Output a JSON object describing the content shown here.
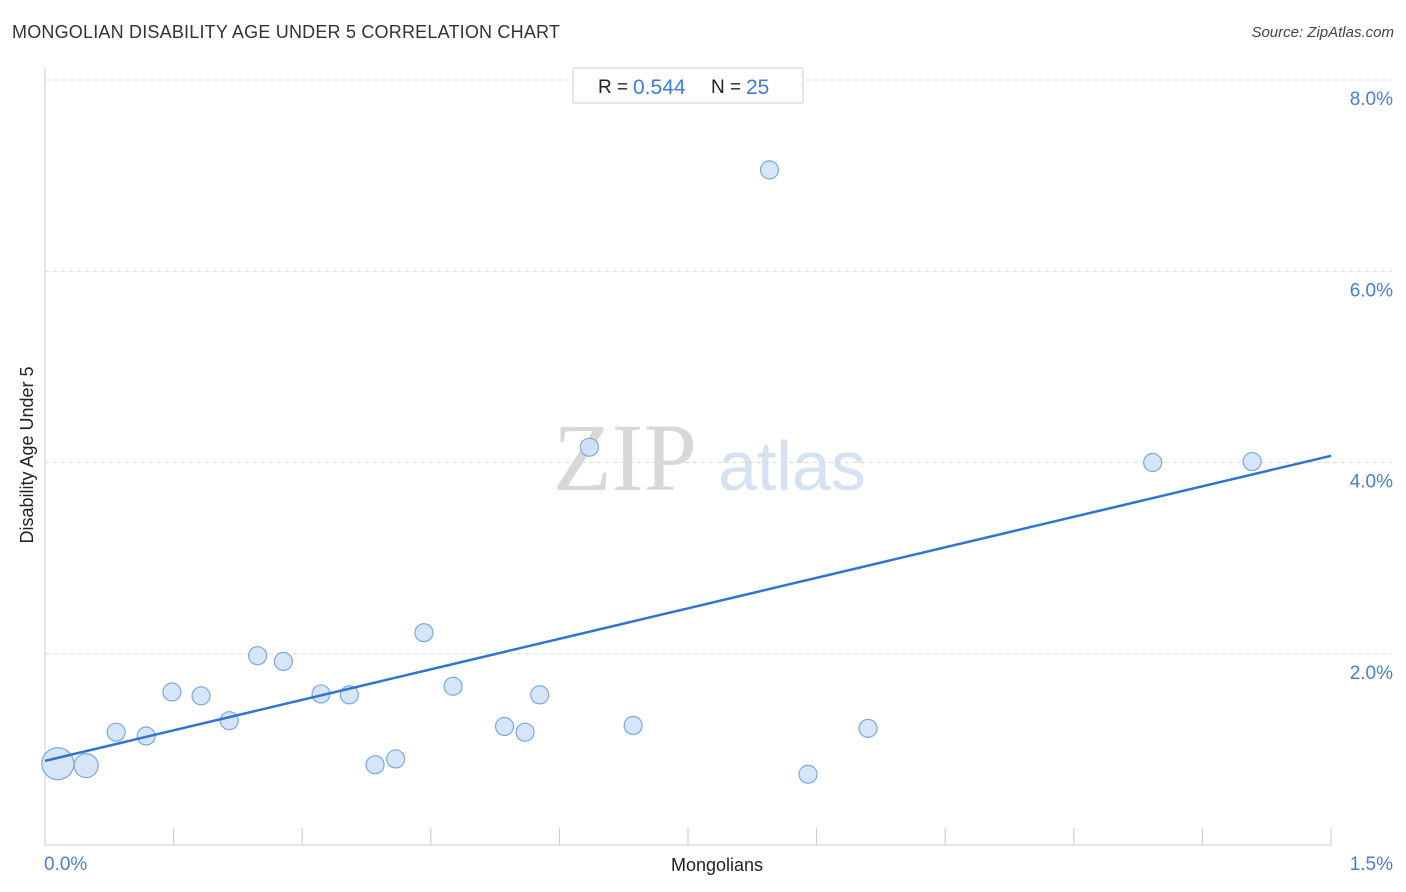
{
  "header": {
    "title": "MONGOLIAN DISABILITY AGE UNDER 5 CORRELATION CHART",
    "source": "Source: ZipAtlas.com"
  },
  "stats": {
    "r_label": "R =",
    "r_value": "0.544",
    "n_label": "N =",
    "n_value": "25"
  },
  "watermark": {
    "zip": "ZIP",
    "atlas": "atlas"
  },
  "colors": {
    "accent": "#2f74d0",
    "point_fill": "#cfe0f6",
    "point_stroke": "#7aa8e0",
    "tick": "#4a7ec9",
    "grid": "#d9d9d9"
  },
  "chart_data": {
    "type": "scatter",
    "xlabel": "Mongolians",
    "ylabel": "Disability Age Under 5",
    "xlim": [
      0,
      1.5
    ],
    "ylim": [
      0,
      8.0
    ],
    "x_tick_labels": [
      "0.0%",
      "1.5%"
    ],
    "y_ticks": [
      2.0,
      4.0,
      6.0,
      8.0
    ],
    "y_tick_labels": [
      "2.0%",
      "4.0%",
      "6.0%",
      "8.0%"
    ],
    "grid": true,
    "points": [
      {
        "x": 0.015,
        "y": 0.85,
        "size": 3
      },
      {
        "x": 0.048,
        "y": 0.83,
        "size": 2
      },
      {
        "x": 0.083,
        "y": 1.18,
        "size": 1
      },
      {
        "x": 0.118,
        "y": 1.14,
        "size": 1
      },
      {
        "x": 0.148,
        "y": 1.6,
        "size": 1
      },
      {
        "x": 0.182,
        "y": 1.56,
        "size": 1
      },
      {
        "x": 0.215,
        "y": 1.3,
        "size": 1
      },
      {
        "x": 0.248,
        "y": 1.98,
        "size": 1
      },
      {
        "x": 0.278,
        "y": 1.92,
        "size": 1
      },
      {
        "x": 0.322,
        "y": 1.58,
        "size": 1
      },
      {
        "x": 0.355,
        "y": 1.57,
        "size": 1
      },
      {
        "x": 0.385,
        "y": 0.84,
        "size": 1
      },
      {
        "x": 0.409,
        "y": 0.9,
        "size": 1
      },
      {
        "x": 0.442,
        "y": 2.22,
        "size": 1
      },
      {
        "x": 0.476,
        "y": 1.66,
        "size": 1
      },
      {
        "x": 0.536,
        "y": 1.24,
        "size": 1
      },
      {
        "x": 0.56,
        "y": 1.18,
        "size": 1
      },
      {
        "x": 0.577,
        "y": 1.57,
        "size": 1
      },
      {
        "x": 0.635,
        "y": 4.16,
        "size": 1
      },
      {
        "x": 0.686,
        "y": 1.25,
        "size": 1
      },
      {
        "x": 0.845,
        "y": 7.06,
        "size": 1
      },
      {
        "x": 0.89,
        "y": 0.74,
        "size": 1
      },
      {
        "x": 0.96,
        "y": 1.22,
        "size": 1
      },
      {
        "x": 1.292,
        "y": 4.0,
        "size": 1
      },
      {
        "x": 1.408,
        "y": 4.01,
        "size": 1
      }
    ],
    "trendline": {
      "x": [
        0,
        1.5
      ],
      "y": [
        0.88,
        4.07
      ]
    }
  }
}
